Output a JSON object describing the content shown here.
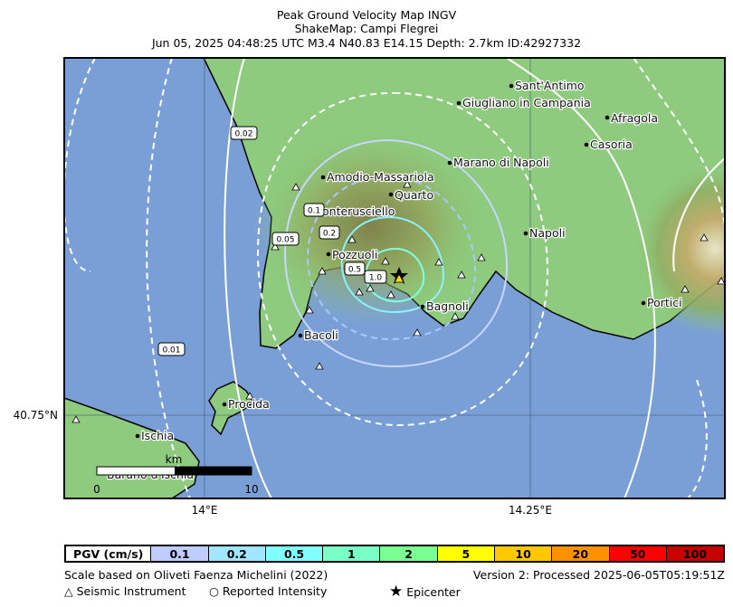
{
  "header": {
    "line1": "Peak Ground Velocity Map INGV",
    "line2": "ShakeMap: Campi Flegrei",
    "line3": "Jun 05, 2025 04:48:25 UTC M3.4 N40.83 E14.15 Depth: 2.7km ID:42927332"
  },
  "map": {
    "colors": {
      "sea": "#7a9fd6",
      "land": "#8ecb7e",
      "coast": "#000000",
      "grid": "#3d4f6a"
    },
    "axes": {
      "lon_ticks": [
        "14°E",
        "14.25°E"
      ],
      "lat_ticks": [
        "40.75°N"
      ]
    },
    "cities": [
      {
        "name": "Sant'Antimo"
      },
      {
        "name": "Giugliano in Campania"
      },
      {
        "name": "Afragola"
      },
      {
        "name": "Casoria"
      },
      {
        "name": "Marano di Napoli"
      },
      {
        "name": "Amodio-Massariola"
      },
      {
        "name": "Quarto"
      },
      {
        "name": "onterusciello"
      },
      {
        "name": "Napoli"
      },
      {
        "name": "Pozzuoli"
      },
      {
        "name": "Bagnoli"
      },
      {
        "name": "Portici"
      },
      {
        "name": "Bacoli"
      },
      {
        "name": "Procida"
      },
      {
        "name": "Ischia"
      },
      {
        "name": "Barano d'Ischia"
      }
    ],
    "contours": [
      {
        "label": "0.01",
        "color": "#ffffff",
        "dashed": true
      },
      {
        "label": "0.02",
        "color": "#ffffff",
        "dashed": false
      },
      {
        "label": "0.05",
        "color": "#ffffff",
        "dashed": true
      },
      {
        "label": "0.1",
        "color": "#c8d7ff",
        "dashed": false
      },
      {
        "label": "0.2",
        "color": "#aac8ff",
        "dashed": true
      },
      {
        "label": "0.5",
        "color": "#8cf0ff",
        "dashed": false
      },
      {
        "label": "1.0",
        "color": "#7fffe0",
        "dashed": false
      }
    ],
    "scalebar": {
      "unit": "km",
      "min": "0",
      "max": "10"
    },
    "epicenter": {
      "lat": 40.83,
      "lon": 14.15
    }
  },
  "legend": {
    "title": "PGV (cm/s)",
    "bins": [
      {
        "label": "0.1",
        "color": "#bfccff"
      },
      {
        "label": "0.2",
        "color": "#a0e6ff"
      },
      {
        "label": "0.5",
        "color": "#80ffff"
      },
      {
        "label": "1",
        "color": "#7affc8"
      },
      {
        "label": "2",
        "color": "#7aff93"
      },
      {
        "label": "5",
        "color": "#ffff00"
      },
      {
        "label": "10",
        "color": "#ffc800"
      },
      {
        "label": "20",
        "color": "#ff9100"
      },
      {
        "label": "50",
        "color": "#ff0000"
      },
      {
        "label": "100",
        "color": "#c80000"
      }
    ]
  },
  "footer": {
    "scale_note": "Scale based on Oliveti Faenza Michelini (2022)",
    "version": "Version 2: Processed 2025-06-05T05:19:51Z",
    "key_instrument": "Seismic Instrument",
    "key_intensity": "Reported Intensity",
    "key_epicenter": "Epicenter"
  }
}
